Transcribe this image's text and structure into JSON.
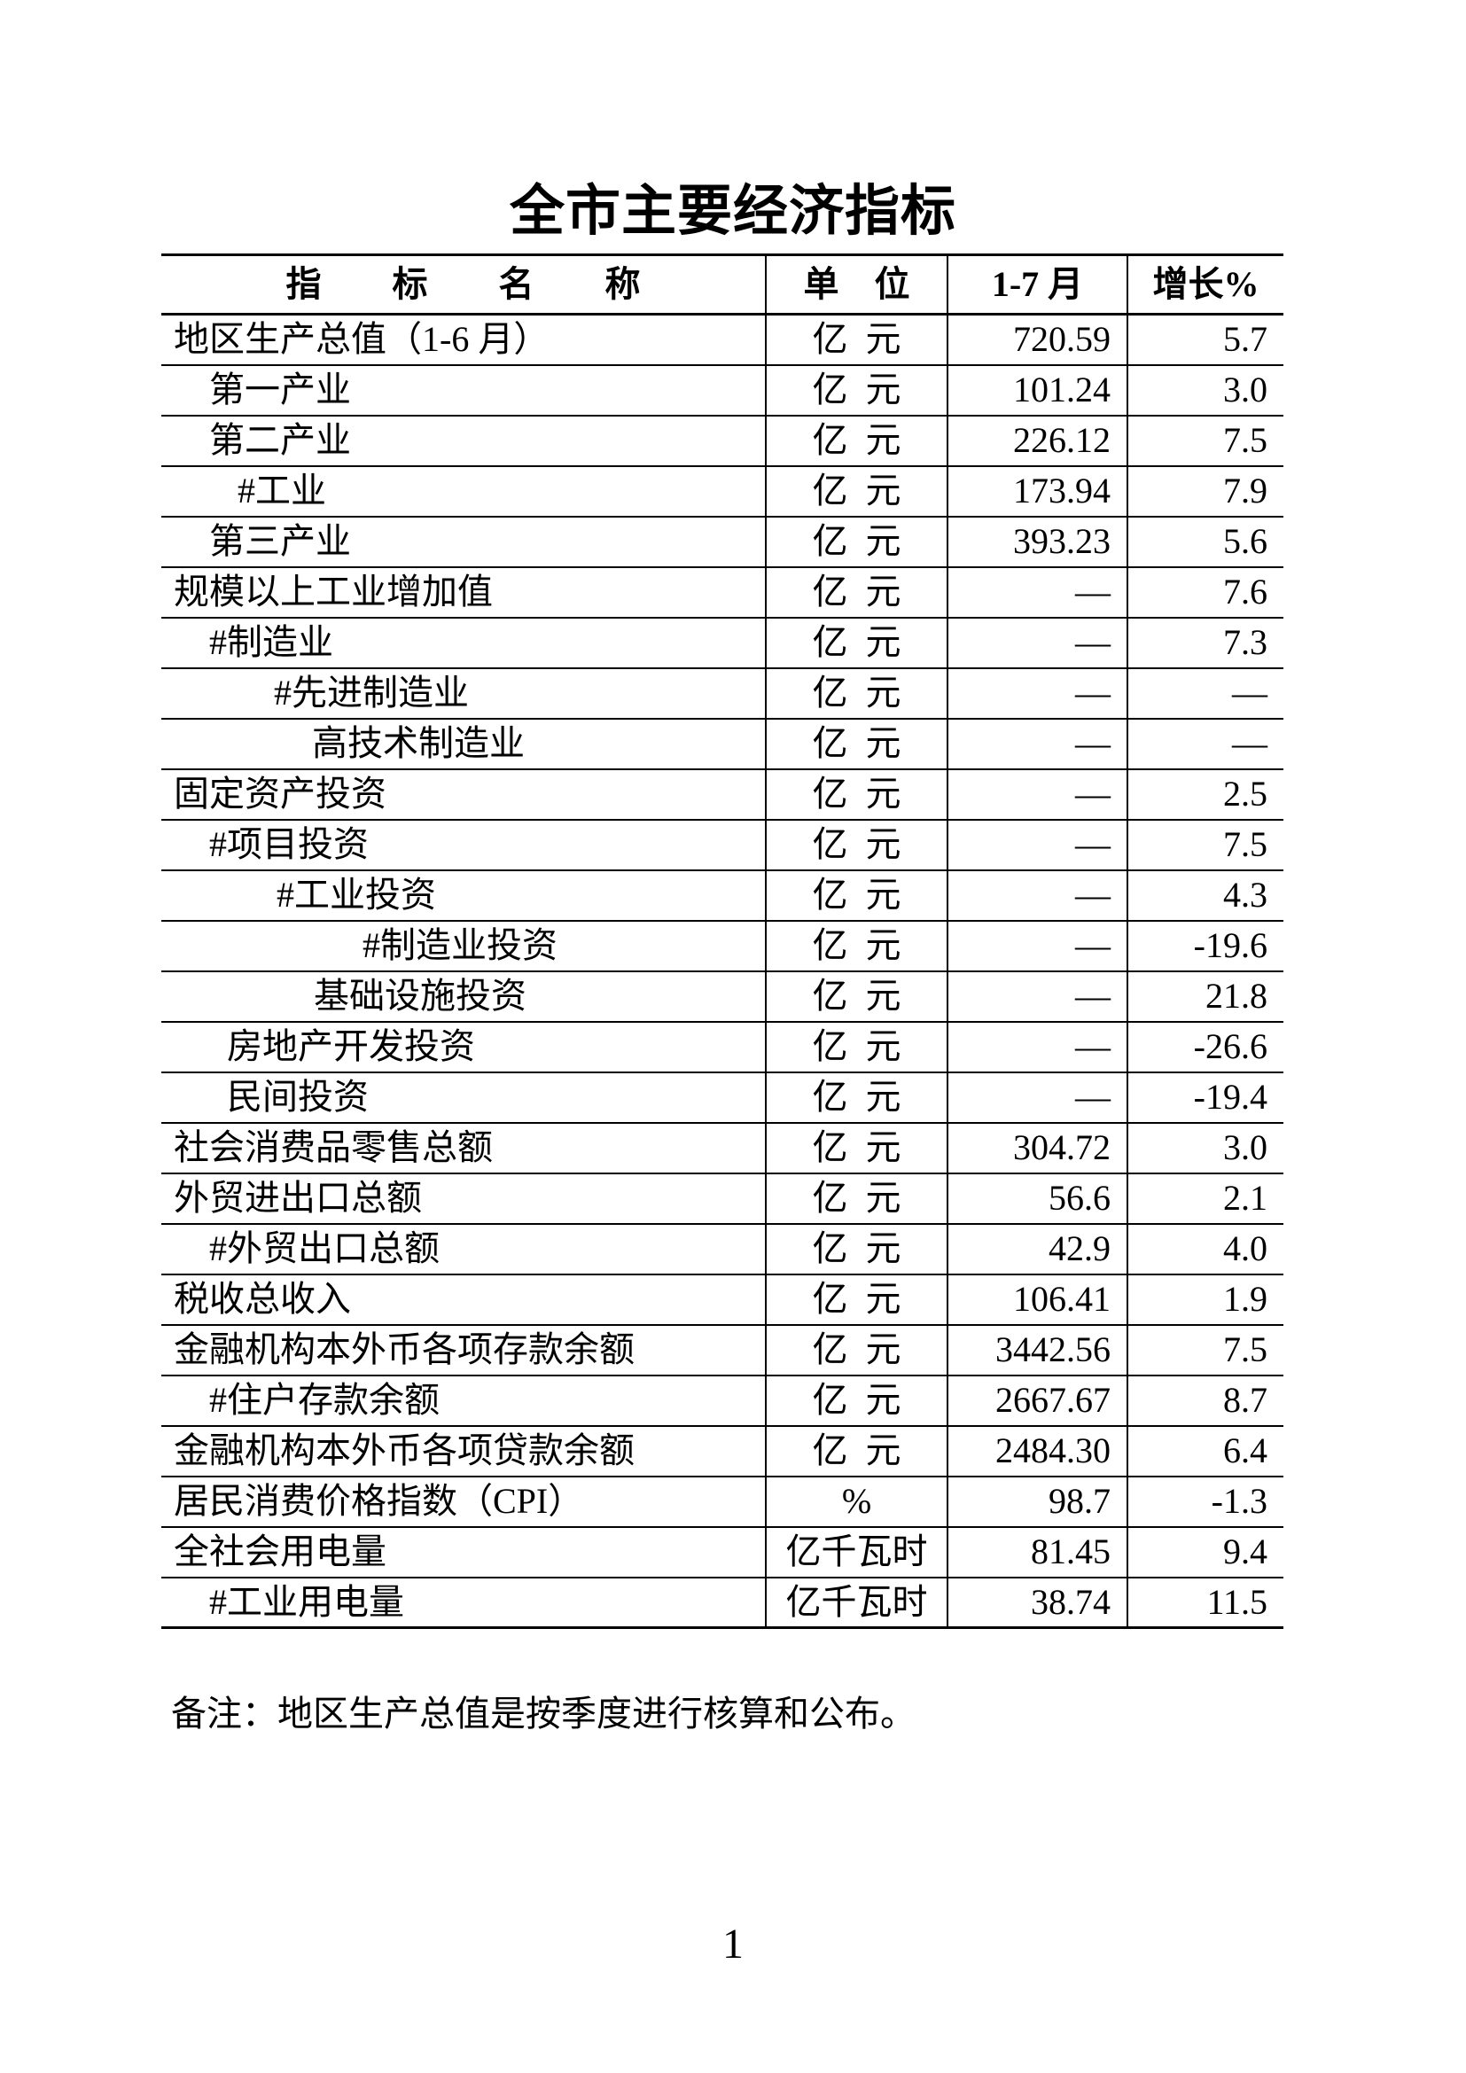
{
  "page": {
    "title": "全市主要经济指标",
    "note": "备注：地区生产总值是按季度进行核算和公布。",
    "page_number": "1"
  },
  "colors": {
    "text": "#000000",
    "border": "#000000",
    "background": "#ffffff"
  },
  "table": {
    "columns": [
      "指　　标　　名　　称",
      "单　位",
      "1-7 月",
      "增长%"
    ],
    "rows": [
      {
        "label": "地区生产总值（1-6 月）",
        "indent": 0,
        "unit": "亿  元",
        "value": "720.59",
        "growth": "5.7"
      },
      {
        "label": "第一产业",
        "indent": 40,
        "unit": "亿  元",
        "value": "101.24",
        "growth": "3.0"
      },
      {
        "label": "第二产业",
        "indent": 40,
        "unit": "亿  元",
        "value": "226.12",
        "growth": "7.5"
      },
      {
        "label": "#工业",
        "indent": 72,
        "unit": "亿  元",
        "value": "173.94",
        "growth": "7.9"
      },
      {
        "label": "第三产业",
        "indent": 40,
        "unit": "亿  元",
        "value": "393.23",
        "growth": "5.6"
      },
      {
        "label": "规模以上工业增加值",
        "indent": 0,
        "unit": "亿  元",
        "value": "—",
        "growth": "7.6"
      },
      {
        "label": "#制造业",
        "indent": 40,
        "unit": "亿  元",
        "value": "—",
        "growth": "7.3"
      },
      {
        "label": "#先进制造业",
        "indent": 113,
        "unit": "亿  元",
        "value": "—",
        "growth": "—"
      },
      {
        "label": "高技术制造业",
        "indent": 156,
        "unit": "亿  元",
        "value": "—",
        "growth": "—"
      },
      {
        "label": "固定资产投资",
        "indent": 0,
        "unit": "亿  元",
        "value": "—",
        "growth": "2.5"
      },
      {
        "label": "#项目投资",
        "indent": 40,
        "unit": "亿  元",
        "value": "—",
        "growth": "7.5"
      },
      {
        "label": "#工业投资",
        "indent": 116,
        "unit": "亿  元",
        "value": "—",
        "growth": "4.3"
      },
      {
        "label": "#制造业投资",
        "indent": 213,
        "unit": "亿  元",
        "value": "—",
        "growth": "-19.6"
      },
      {
        "label": "基础设施投资",
        "indent": 158,
        "unit": "亿  元",
        "value": "—",
        "growth": "21.8"
      },
      {
        "label": "房地产开发投资",
        "indent": 60,
        "unit": "亿  元",
        "value": "—",
        "growth": "-26.6"
      },
      {
        "label": "民间投资",
        "indent": 60,
        "unit": "亿  元",
        "value": "—",
        "growth": "-19.4"
      },
      {
        "label": "社会消费品零售总额",
        "indent": 0,
        "unit": "亿  元",
        "value": "304.72",
        "growth": "3.0"
      },
      {
        "label": "外贸进出口总额",
        "indent": 0,
        "unit": "亿  元",
        "value": "56.6",
        "growth": "2.1"
      },
      {
        "label": "#外贸出口总额",
        "indent": 40,
        "unit": "亿  元",
        "value": "42.9",
        "growth": "4.0"
      },
      {
        "label": "税收总收入",
        "indent": 0,
        "unit": "亿  元",
        "value": "106.41",
        "growth": "1.9"
      },
      {
        "label": "金融机构本外币各项存款余额",
        "indent": 0,
        "unit": "亿  元",
        "value": "3442.56",
        "growth": "7.5"
      },
      {
        "label": "#住户存款余额",
        "indent": 40,
        "unit": "亿  元",
        "value": "2667.67",
        "growth": "8.7"
      },
      {
        "label": "金融机构本外币各项贷款余额",
        "indent": 0,
        "unit": "亿  元",
        "value": "2484.30",
        "growth": "6.4"
      },
      {
        "label": "居民消费价格指数（CPI）",
        "indent": 0,
        "unit": "%",
        "value": "98.7",
        "growth": "-1.3"
      },
      {
        "label": "全社会用电量",
        "indent": 0,
        "unit": "亿千瓦时",
        "value": "81.45",
        "growth": "9.4"
      },
      {
        "label": "#工业用电量",
        "indent": 40,
        "unit": "亿千瓦时",
        "value": "38.74",
        "growth": "11.5"
      }
    ]
  }
}
